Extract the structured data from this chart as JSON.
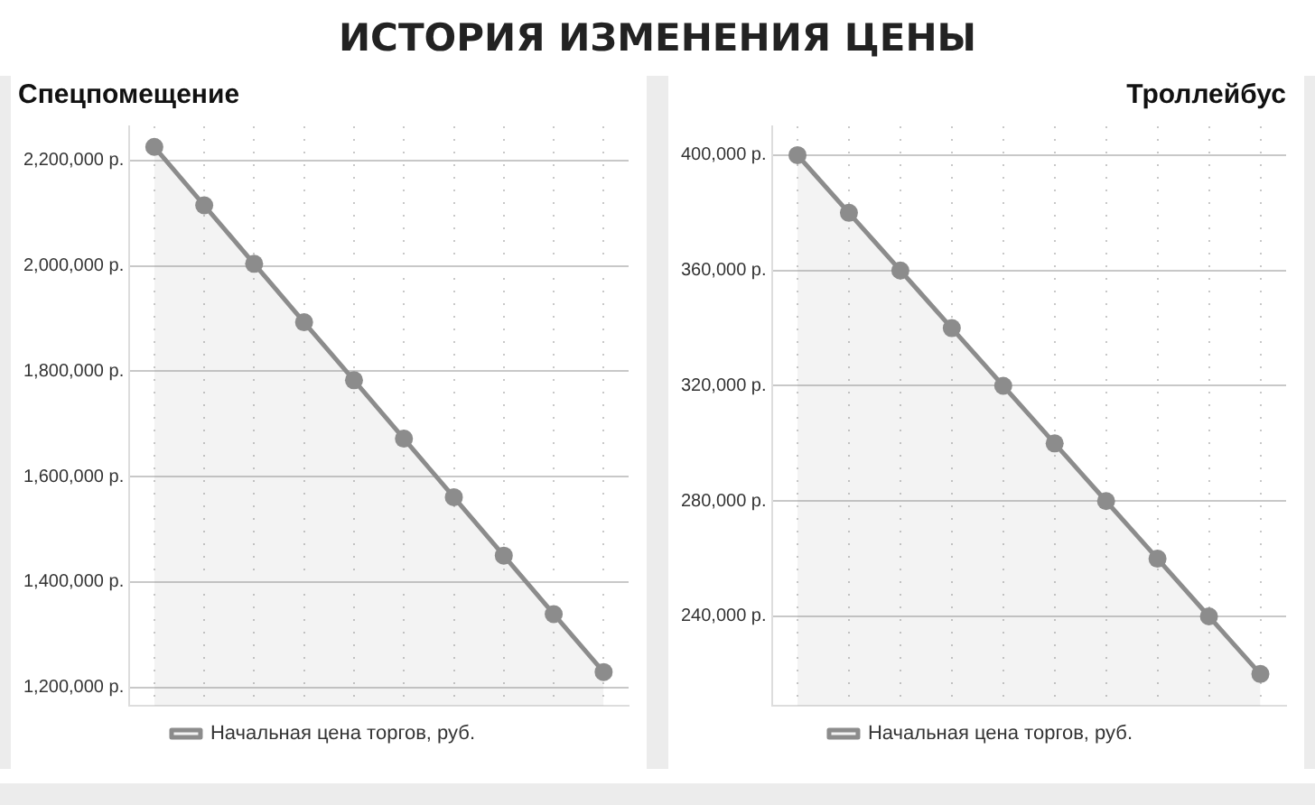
{
  "chart_data": [
    {
      "type": "area",
      "title": "ИСТОРИЯ ИЗМЕНЕНИЯ ЦЕНЫ",
      "subtitle": "Спецпомещение",
      "categories": [
        null,
        null,
        null,
        null,
        null,
        null,
        null,
        null,
        null,
        null
      ],
      "series": [
        {
          "name": "Начальная цена торгов, руб.",
          "color": "#8c8c8c",
          "values": [
            2226000,
            2115000,
            2004000,
            1893000,
            1783000,
            1672000,
            1561000,
            1450000,
            1339000,
            1229000
          ]
        }
      ],
      "ylim": [
        1165000,
        2265000
      ],
      "yticks": [
        {
          "value": 1200000,
          "label": "1,200,000 р."
        },
        {
          "value": 1400000,
          "label": "1,400,000 р."
        },
        {
          "value": 1600000,
          "label": "1,600,000 р."
        },
        {
          "value": 1800000,
          "label": "1,800,000 р."
        },
        {
          "value": 2000000,
          "label": "2,000,000 р."
        },
        {
          "value": 2200000,
          "label": "2,200,000 р."
        }
      ],
      "grid": true,
      "legend": "bottom",
      "marker": "circle",
      "tick_labels": "y"
    },
    {
      "type": "area",
      "subtitle": "Троллейбус",
      "categories": [
        null,
        null,
        null,
        null,
        null,
        null,
        null,
        null,
        null,
        null
      ],
      "series": [
        {
          "name": "Начальная цена торгов, руб.",
          "color": "#8c8c8c",
          "values": [
            400000,
            380000,
            360000,
            340000,
            320000,
            300000,
            280000,
            260000,
            240000,
            220000
          ]
        }
      ],
      "ylim": [
        209000,
        410000
      ],
      "yticks": [
        {
          "value": 240000,
          "label": "240,000 р."
        },
        {
          "value": 280000,
          "label": "280,000 р."
        },
        {
          "value": 320000,
          "label": "320,000 р."
        },
        {
          "value": 360000,
          "label": "360,000 р."
        },
        {
          "value": 400000,
          "label": "400,000 р."
        }
      ],
      "grid": true,
      "legend": "bottom",
      "marker": "circle",
      "tick_labels": "y"
    }
  ]
}
